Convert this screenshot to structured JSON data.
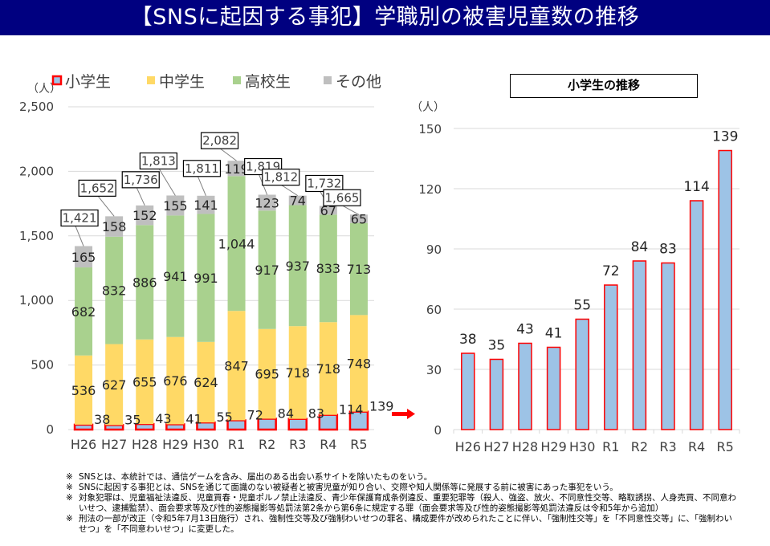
{
  "header": {
    "title": "【SNSに起因する事犯】学職別の被害児童数の推移"
  },
  "chart_data": [
    {
      "type": "bar",
      "stacked": true,
      "title": "",
      "unit_label": "（人）",
      "ylabel": "（人）",
      "xlabel": "",
      "ylim": [
        0,
        2500
      ],
      "yticks": [
        0,
        500,
        1000,
        1500,
        2000,
        2500
      ],
      "ytick_labels": [
        "0",
        "500",
        "1,000",
        "1,500",
        "2,000",
        "2,500"
      ],
      "grid": true,
      "legend_position": "top",
      "categories": [
        "H26",
        "H27",
        "H28",
        "H29",
        "H30",
        "R1",
        "R2",
        "R3",
        "R4",
        "R5"
      ],
      "series": [
        {
          "name": "小学生",
          "color": "#9DC3E6",
          "border": "#FF0000",
          "values": [
            38,
            35,
            43,
            41,
            55,
            72,
            84,
            83,
            114,
            139
          ]
        },
        {
          "name": "中学生",
          "color": "#FFD966",
          "values": [
            536,
            627,
            655,
            676,
            624,
            847,
            695,
            718,
            718,
            748
          ]
        },
        {
          "name": "高校生",
          "color": "#A9D18E",
          "values": [
            682,
            832,
            886,
            941,
            991,
            1044,
            917,
            937,
            833,
            713
          ]
        },
        {
          "name": "その他",
          "color": "#BFBFBF",
          "values": [
            165,
            158,
            152,
            155,
            141,
            119,
            123,
            74,
            67,
            65
          ]
        }
      ],
      "totals": [
        1421,
        1652,
        1736,
        1813,
        1811,
        2082,
        1819,
        1812,
        1732,
        1665
      ],
      "total_labels": [
        "1,421",
        "1,652",
        "1,736",
        "1,813",
        "1,811",
        "2,082",
        "1,819",
        "1,812",
        "1,732",
        "1,665"
      ],
      "value_labels": {
        "小学生": [
          "38",
          "35",
          "43",
          "41",
          "55",
          "72",
          "84",
          "83",
          "114",
          "139"
        ],
        "中学生": [
          "536",
          "627",
          "655",
          "676",
          "624",
          "847",
          "695",
          "718",
          "718",
          "748"
        ],
        "高校生": [
          "682",
          "832",
          "886",
          "941",
          "991",
          "1,044",
          "917",
          "937",
          "833",
          "713"
        ],
        "その他": [
          "165",
          "158",
          "152",
          "155",
          "141",
          "119",
          "123",
          "74",
          "67",
          "65"
        ]
      }
    },
    {
      "type": "bar",
      "title": "小学生の推移",
      "unit_label": "（人）",
      "ylabel": "（人）",
      "xlabel": "",
      "ylim": [
        0,
        150
      ],
      "yticks": [
        0,
        30,
        60,
        90,
        120,
        150
      ],
      "ytick_labels": [
        "0",
        "30",
        "60",
        "90",
        "120",
        "150"
      ],
      "grid": true,
      "categories": [
        "H26",
        "H27",
        "H28",
        "H29",
        "H30",
        "R1",
        "R2",
        "R3",
        "R4",
        "R5"
      ],
      "values": [
        38,
        35,
        43,
        41,
        55,
        72,
        84,
        83,
        114,
        139
      ],
      "value_labels": [
        "38",
        "35",
        "43",
        "41",
        "55",
        "72",
        "84",
        "83",
        "114",
        "139"
      ],
      "color": "#9DC3E6",
      "border": "#FF0000"
    }
  ],
  "arrow": {
    "icon": "right-arrow-icon",
    "color": "#FF0000"
  },
  "notes": [
    {
      "mark": "※",
      "text": "SNSとは、本統計では、通信ゲームを含み、届出のある出会い系サイトを除いたものをいう。"
    },
    {
      "mark": "※",
      "text": "SNSに起因する事犯とは、SNSを通じて面識のない被疑者と被害児童が知り合い、交際や知人関係等に発展する前に被害にあった事犯をいう。"
    },
    {
      "mark": "※",
      "text": "対象犯罪は、児童福祉法違反、児童買春・児童ポルノ禁止法違反、青少年保護育成条例違反、重要犯罪等（殺人、強盗、放火、不同意性交等、略取誘拐、人身売買、不同意わいせつ、逮捕監禁）、面会要求等及び性的姿態撮影等処罰法第2条から第6条に規定する罪（面会要求等及び性的姿態撮影等処罰法違反は令和5年から追加）"
    },
    {
      "mark": "※",
      "text": "刑法の一部が改正（令和5年7月13日施行）され、強制性交等及び強制わいせつの罪名、構成要件が改められたことに伴い、「強制性交等」を「不同意性交等」に、「強制わいせつ」を「不同意わいせつ」に変更した。"
    }
  ]
}
